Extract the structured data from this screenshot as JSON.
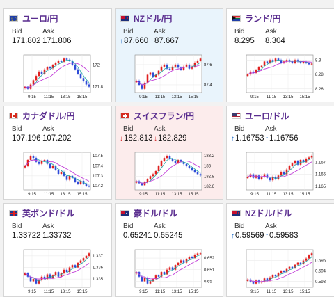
{
  "panels": [
    {
      "pair": "ユーロ/円",
      "flag": "eu",
      "bid": "171.802",
      "ask": "171.806",
      "direction": "none",
      "y_ticks": [
        "172",
        "171.8"
      ],
      "x_ticks": [
        "9:15",
        "11:15",
        "13:15",
        "15:15"
      ],
      "state": "plain"
    },
    {
      "pair": "NZドル/円",
      "flag": "nz",
      "bid": "87.660",
      "ask": "87.667",
      "direction": "up",
      "y_ticks": [
        "87.6",
        "87.4"
      ],
      "x_ticks": [
        "9:15",
        "11:15",
        "13:15",
        "15:15"
      ],
      "state": "up"
    },
    {
      "pair": "ランド/円",
      "flag": "za",
      "bid": "8.295",
      "ask": "8.304",
      "direction": "none",
      "y_ticks": [
        "8.3",
        "8.28",
        "8.26"
      ],
      "x_ticks": [
        "9:15",
        "11:15",
        "13:15",
        "15:15"
      ],
      "state": "plain"
    },
    {
      "pair": "カナダドル/円",
      "flag": "ca",
      "bid": "107.196",
      "ask": "107.202",
      "direction": "none",
      "y_ticks": [
        "107.5",
        "107.4",
        "107.3",
        "107.2"
      ],
      "x_ticks": [
        "9:15",
        "11:15",
        "13:15",
        "15:15"
      ],
      "state": "plain"
    },
    {
      "pair": "スイスフラン/円",
      "flag": "ch",
      "bid": "182.813",
      "ask": "182.829",
      "direction": "down",
      "y_ticks": [
        "183.2",
        "183",
        "182.8",
        "182.6"
      ],
      "x_ticks": [
        "9:15",
        "11:15",
        "13:15",
        "15:15"
      ],
      "state": "down"
    },
    {
      "pair": "ユーロ/ドル",
      "flag": "eu",
      "bid": "1.16753",
      "ask": "1.16756",
      "direction": "up",
      "y_ticks": [
        "1.167",
        "1.166",
        "1.165"
      ],
      "x_ticks": [
        "9:15",
        "11:15",
        "13:15",
        "15:15"
      ],
      "state": "plain"
    },
    {
      "pair": "英ポンド/ドル",
      "flag": "gb",
      "bid": "1.33722",
      "ask": "1.33732",
      "direction": "none",
      "y_ticks": [
        "1.337",
        "1.336",
        "1.335"
      ],
      "x_ticks": [
        "9:15",
        "11:15",
        "13:15",
        "15:15"
      ],
      "state": "plain"
    },
    {
      "pair": "豪ドル/ドル",
      "flag": "au",
      "bid": "0.65241",
      "ask": "0.65245",
      "direction": "none",
      "y_ticks": [
        "0.652",
        "0.651",
        "0.65"
      ],
      "x_ticks": [
        "9:15",
        "11:15",
        "13:15",
        "15:15"
      ],
      "state": "plain"
    },
    {
      "pair": "NZドル/ドル",
      "flag": "nz",
      "bid": "0.59569",
      "ask": "0.59583",
      "direction": "up",
      "y_ticks": [
        "0.595",
        "0.594",
        "0.593"
      ],
      "x_ticks": [
        "9:15",
        "11:15",
        "13:15",
        "15:15"
      ],
      "state": "plain"
    }
  ],
  "labels": {
    "bid": "Bid",
    "ask": "Ask"
  },
  "colors": {
    "up_candle": "#e02020",
    "down_candle": "#2f4bd8",
    "ma_short": "#1aa3a3",
    "ma_long": "#c23ed8",
    "pair_text": "#5a2d8f",
    "arrow_up": "#1b69c4",
    "arrow_down": "#d42626"
  },
  "chart_data": [
    {
      "type": "candlestick",
      "pair": "ユーロ/円",
      "y_ticks": [
        "172",
        "171.8"
      ],
      "x_ticks": [
        "9:15",
        "11:15",
        "13:15",
        "15:15"
      ],
      "closes": [
        171.8,
        171.78,
        171.82,
        171.86,
        171.9,
        171.94,
        171.92,
        171.96,
        171.98,
        171.97,
        172.0,
        172.02,
        172.04,
        172.03,
        172.06,
        172.05,
        172.04,
        172.0,
        171.96,
        171.92,
        171.88,
        171.85,
        171.82,
        171.8
      ]
    },
    {
      "type": "candlestick",
      "pair": "NZドル/円",
      "y_ticks": [
        "87.6",
        "87.4"
      ],
      "x_ticks": [
        "9:15",
        "11:15",
        "13:15",
        "15:15"
      ],
      "closes": [
        87.44,
        87.4,
        87.36,
        87.42,
        87.5,
        87.52,
        87.48,
        87.5,
        87.54,
        87.58,
        87.6,
        87.56,
        87.55,
        87.58,
        87.6,
        87.57,
        87.55,
        87.58,
        87.6,
        87.56,
        87.58,
        87.62,
        87.64,
        87.66
      ]
    },
    {
      "type": "candlestick",
      "pair": "ランド/円",
      "y_ticks": [
        "8.3",
        "8.28",
        "8.26"
      ],
      "x_ticks": [
        "9:15",
        "11:15",
        "13:15",
        "15:15"
      ],
      "closes": [
        8.28,
        8.284,
        8.282,
        8.286,
        8.29,
        8.292,
        8.298,
        8.296,
        8.3,
        8.298,
        8.302,
        8.3,
        8.296,
        8.298,
        8.3,
        8.298,
        8.296,
        8.3,
        8.298,
        8.296,
        8.298,
        8.296,
        8.294,
        8.295
      ]
    },
    {
      "type": "candlestick",
      "pair": "カナダドル/円",
      "y_ticks": [
        "107.5",
        "107.4",
        "107.3",
        "107.2"
      ],
      "x_ticks": [
        "9:15",
        "11:15",
        "13:15",
        "15:15"
      ],
      "closes": [
        107.4,
        107.46,
        107.5,
        107.48,
        107.44,
        107.42,
        107.45,
        107.46,
        107.42,
        107.38,
        107.4,
        107.36,
        107.32,
        107.34,
        107.3,
        107.26,
        107.3,
        107.28,
        107.24,
        107.22,
        107.25,
        107.22,
        107.2,
        107.196
      ]
    },
    {
      "type": "candlestick",
      "pair": "スイスフラン/円",
      "y_ticks": [
        "183.2",
        "183",
        "182.8",
        "182.6"
      ],
      "x_ticks": [
        "9:15",
        "11:15",
        "13:15",
        "15:15"
      ],
      "closes": [
        182.7,
        182.66,
        182.62,
        182.68,
        182.74,
        182.8,
        182.84,
        182.9,
        183.0,
        183.1,
        183.16,
        183.2,
        183.14,
        183.1,
        183.06,
        183.12,
        183.08,
        183.04,
        183.0,
        182.96,
        182.92,
        182.88,
        182.84,
        182.813
      ]
    },
    {
      "type": "candlestick",
      "pair": "ユーロ/ドル",
      "y_ticks": [
        "1.167",
        "1.166",
        "1.165"
      ],
      "x_ticks": [
        "9:15",
        "11:15",
        "13:15",
        "15:15"
      ],
      "closes": [
        1.1658,
        1.166,
        1.1657,
        1.1659,
        1.1656,
        1.1658,
        1.166,
        1.1657,
        1.1655,
        1.1658,
        1.1656,
        1.1659,
        1.1662,
        1.166,
        1.1664,
        1.1667,
        1.1669,
        1.1671,
        1.1668,
        1.1672,
        1.167,
        1.1673,
        1.1674,
        1.16753
      ]
    },
    {
      "type": "candlestick",
      "pair": "英ポンド/ドル",
      "y_ticks": [
        "1.337",
        "1.336",
        "1.335"
      ],
      "x_ticks": [
        "9:15",
        "11:15",
        "13:15",
        "15:15"
      ],
      "closes": [
        1.3355,
        1.3352,
        1.3348,
        1.335,
        1.3346,
        1.3349,
        1.3352,
        1.335,
        1.3354,
        1.3351,
        1.3353,
        1.3356,
        1.3352,
        1.3355,
        1.3358,
        1.3356,
        1.336,
        1.3362,
        1.336,
        1.3364,
        1.3366,
        1.3368,
        1.337,
        1.33722
      ]
    },
    {
      "type": "candlestick",
      "pair": "豪ドル/ドル",
      "y_ticks": [
        "0.652",
        "0.651",
        "0.65"
      ],
      "x_ticks": [
        "9:15",
        "11:15",
        "13:15",
        "15:15"
      ],
      "closes": [
        0.6508,
        0.6504,
        0.65,
        0.6503,
        0.6498,
        0.65,
        0.6502,
        0.6505,
        0.6504,
        0.6508,
        0.6506,
        0.651,
        0.6512,
        0.651,
        0.6514,
        0.6516,
        0.6518,
        0.6516,
        0.6519,
        0.6521,
        0.652,
        0.6523,
        0.6524,
        0.65241
      ]
    },
    {
      "type": "candlestick",
      "pair": "NZドル/ドル",
      "y_ticks": [
        "0.595",
        "0.594",
        "0.593"
      ],
      "x_ticks": [
        "9:15",
        "11:15",
        "13:15",
        "15:15"
      ],
      "closes": [
        0.5932,
        0.593,
        0.5928,
        0.5931,
        0.5929,
        0.593,
        0.5933,
        0.5931,
        0.5934,
        0.5936,
        0.5935,
        0.5938,
        0.594,
        0.5939,
        0.5942,
        0.5944,
        0.5943,
        0.5946,
        0.5948,
        0.5947,
        0.595,
        0.5952,
        0.5955,
        0.59569
      ]
    }
  ]
}
